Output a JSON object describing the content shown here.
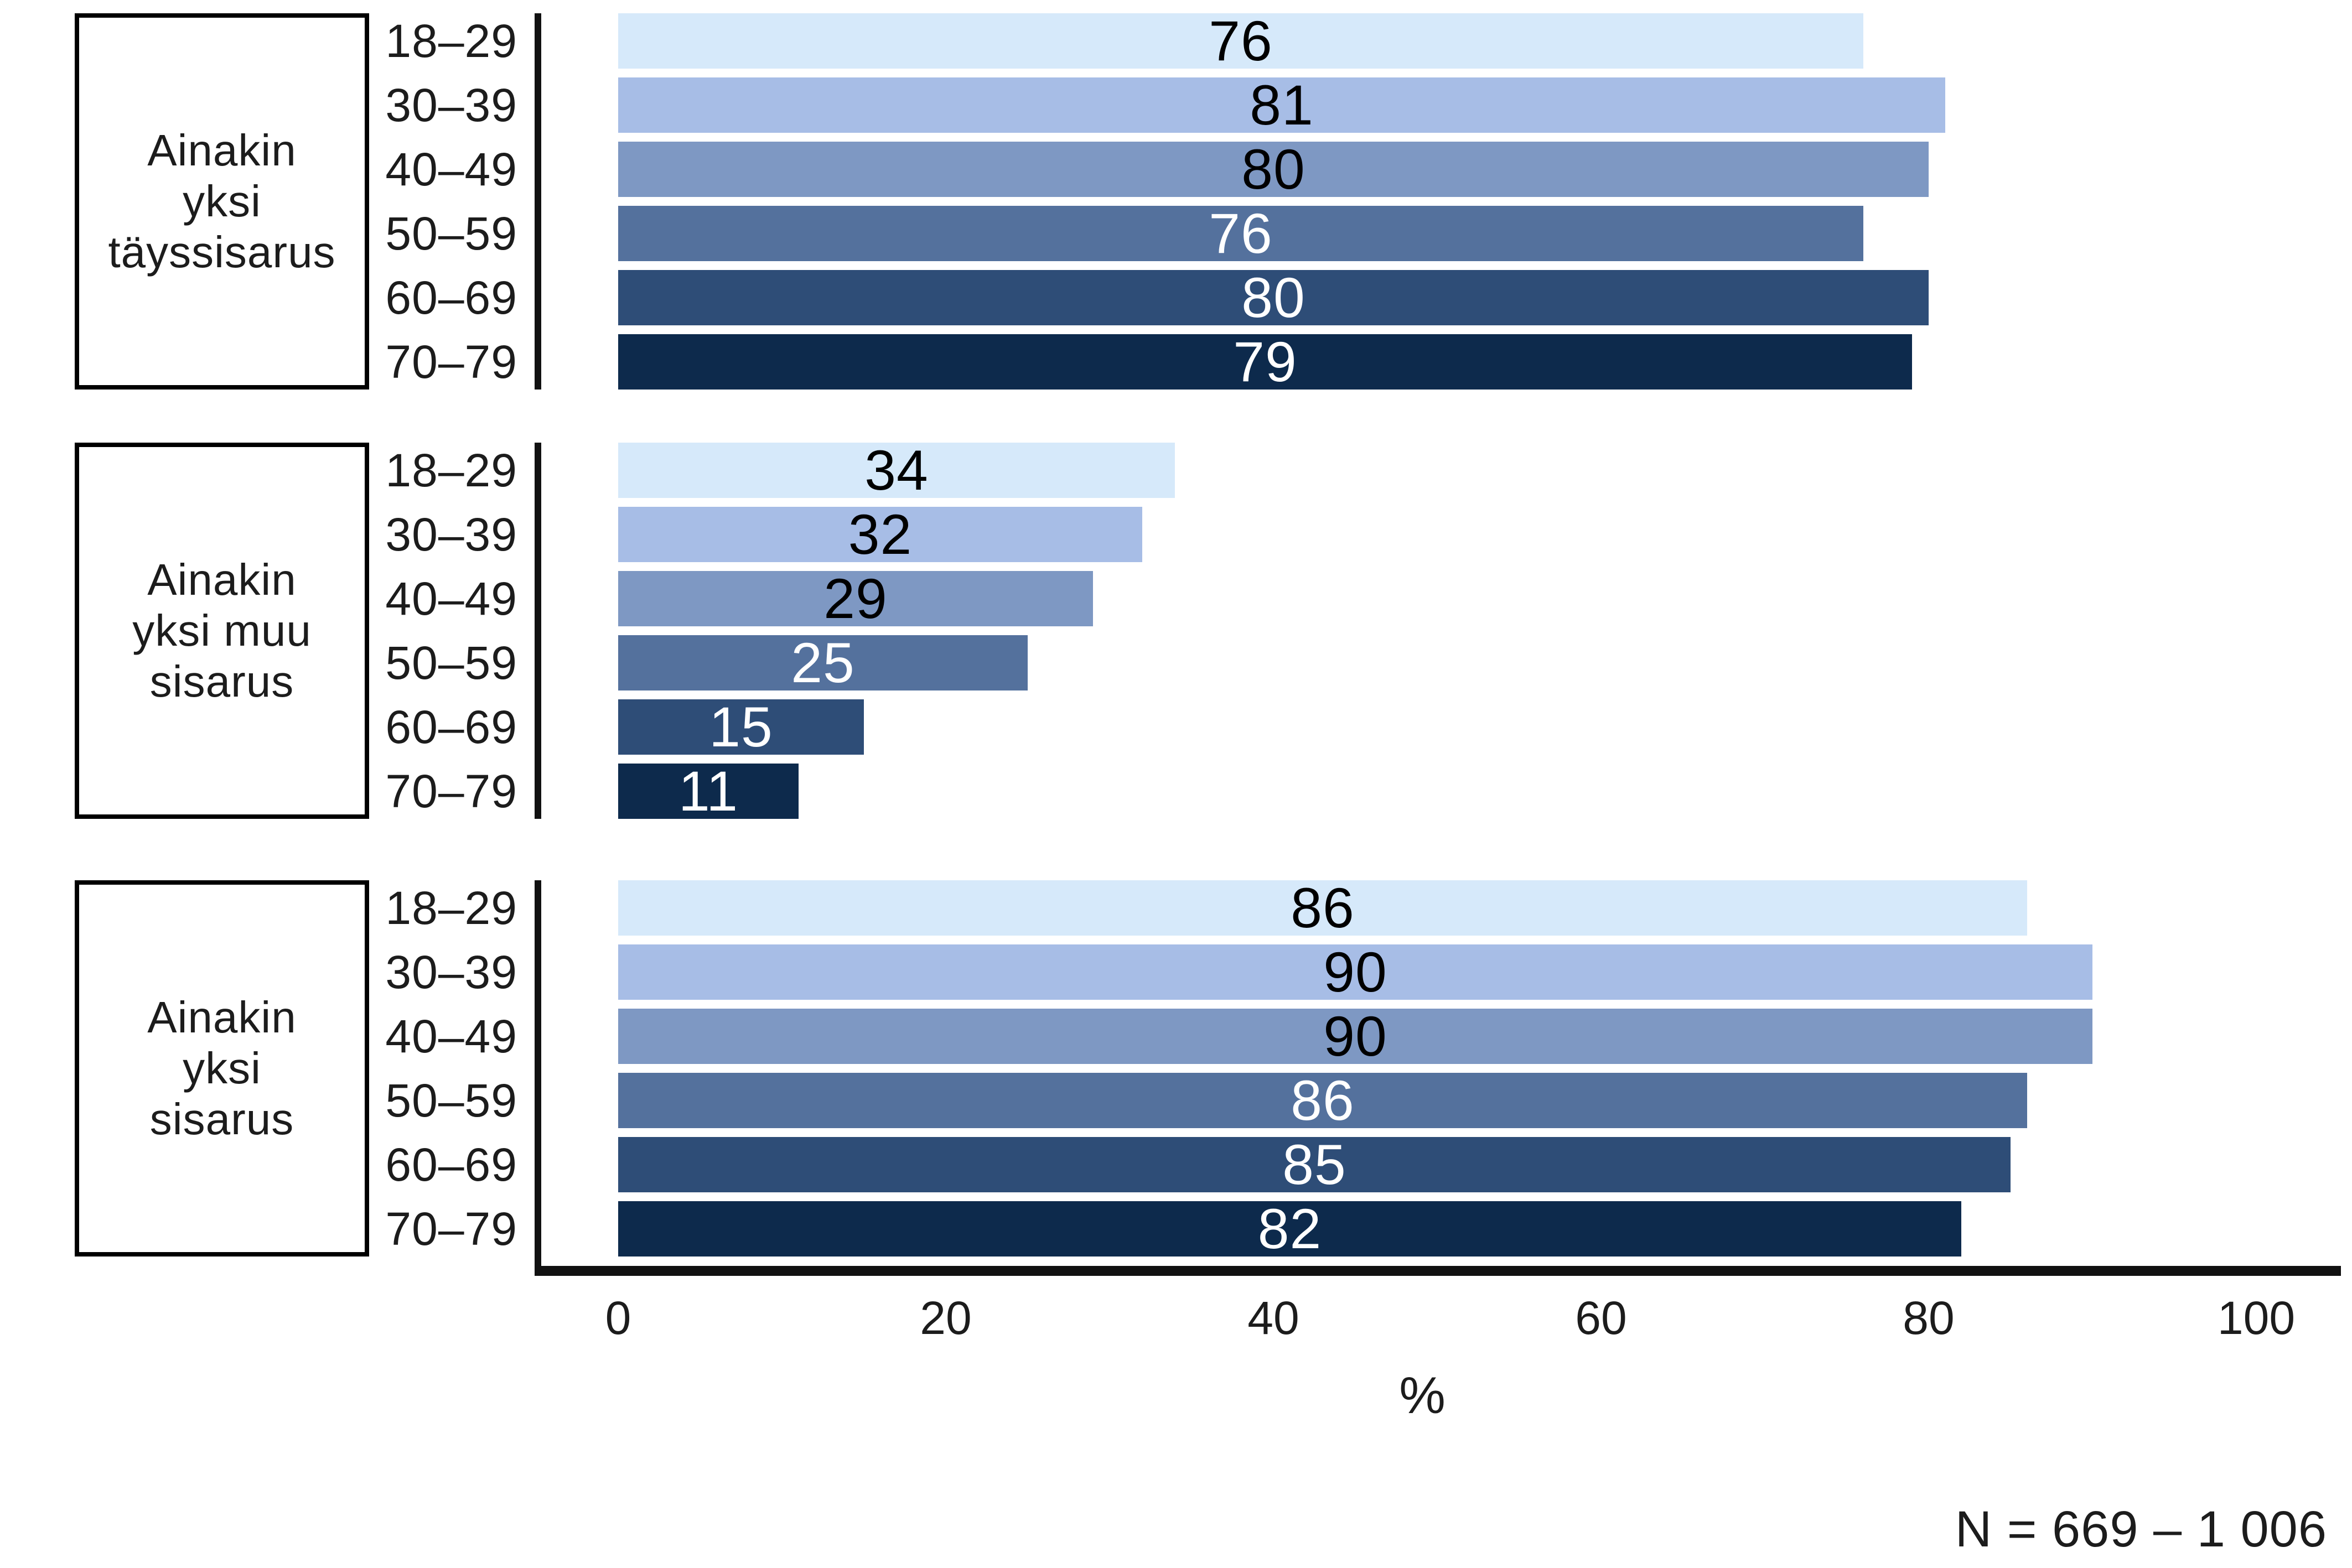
{
  "chart_data": {
    "type": "bar",
    "orientation": "horizontal",
    "title": "",
    "xlabel": "%",
    "xlim": [
      0,
      100
    ],
    "x_ticks": [
      "0",
      "20",
      "40",
      "60",
      "80",
      "100"
    ],
    "categories": [
      "18–29",
      "30–39",
      "40–49",
      "50–59",
      "60–69",
      "70–79"
    ],
    "groups": [
      {
        "label_lines": [
          "Ainakin",
          "yksi",
          "täyssisarus"
        ],
        "label": "Ainakin yksi täyssisarus",
        "values": [
          76,
          81,
          80,
          76,
          80,
          79
        ]
      },
      {
        "label_lines": [
          "Ainakin",
          "yksi muu",
          "sisarus"
        ],
        "label": "Ainakin yksi muu sisarus",
        "values": [
          34,
          32,
          29,
          25,
          15,
          11
        ]
      },
      {
        "label_lines": [
          "Ainakin",
          "yksi",
          "sisarus"
        ],
        "label": "Ainakin yksi sisarus",
        "values": [
          86,
          90,
          90,
          86,
          85,
          82
        ]
      }
    ],
    "bar_colors": [
      "#d6e9fa",
      "#a7bde6",
      "#7e98c3",
      "#54719d",
      "#2e4d77",
      "#0d2a4c"
    ],
    "value_label_colors": [
      "#000000",
      "#000000",
      "#000000",
      "#ffffff",
      "#ffffff",
      "#ffffff"
    ],
    "note": "N = 669 – 1 006",
    "legend": "none",
    "grid": false
  }
}
